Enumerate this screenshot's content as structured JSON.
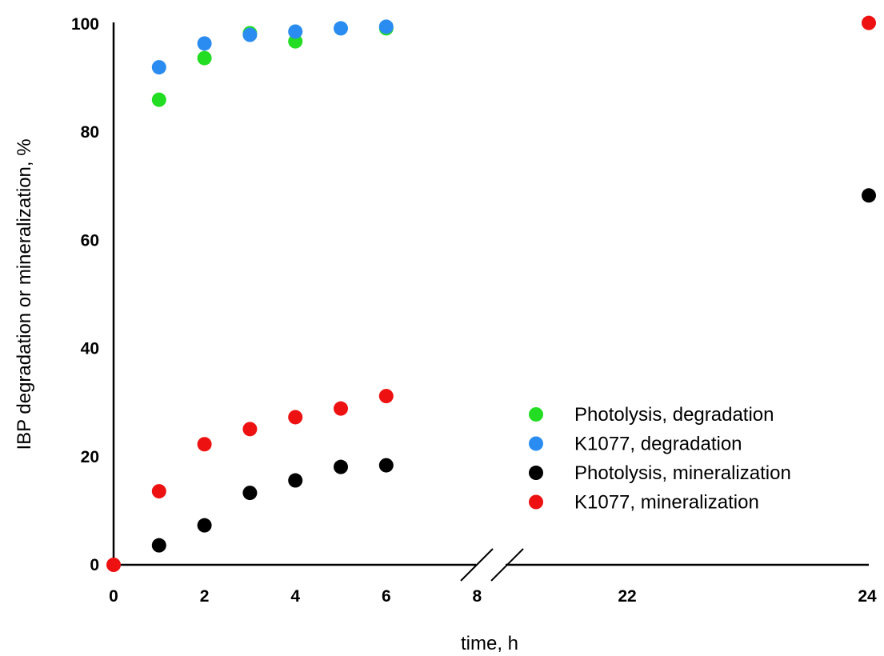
{
  "chart_data": {
    "type": "scatter",
    "xlabel": "time, h",
    "ylabel": "IBP degradation or mineralization, %",
    "ylim": [
      0,
      100
    ],
    "x_axis_break": [
      8,
      22
    ],
    "x_ticks": [
      0,
      2,
      4,
      6,
      8,
      22,
      24
    ],
    "y_ticks": [
      0,
      20,
      40,
      60,
      80,
      100
    ],
    "legend_position": "lower-right",
    "series": [
      {
        "name": "Photolysis, degradation",
        "color": "#22dd22",
        "x": [
          1,
          2,
          3,
          4,
          6
        ],
        "y": [
          86,
          93.7,
          98.3,
          96.8,
          99.2
        ]
      },
      {
        "name": "K1077, degradation",
        "color": "#2a8cf0",
        "x": [
          1,
          2,
          3,
          4,
          5,
          6
        ],
        "y": [
          92,
          96.4,
          98,
          98.6,
          99.2,
          99.5
        ]
      },
      {
        "name": "Photolysis, mineralization",
        "color": "#000000",
        "x": [
          1,
          2,
          3,
          4,
          5,
          6,
          24
        ],
        "y": [
          3.6,
          7.3,
          13.3,
          15.6,
          18.1,
          18.4,
          68.3
        ]
      },
      {
        "name": "K1077, mineralization",
        "color": "#ee1111",
        "x": [
          0,
          1,
          2,
          3,
          4,
          5,
          6,
          24
        ],
        "y": [
          0,
          13.6,
          22.3,
          25.1,
          27.3,
          28.9,
          31.2,
          100.2
        ]
      }
    ]
  }
}
